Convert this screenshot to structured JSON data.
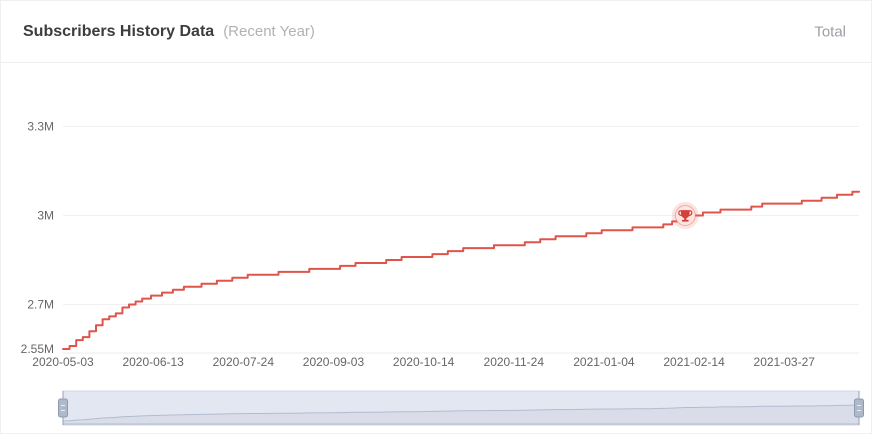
{
  "header": {
    "title": "Subscribers History Data",
    "subtitle": "(Recent Year)",
    "right_label": "Total"
  },
  "colors": {
    "line": "#e0544b",
    "grid": "#f1f1f1",
    "axis_line": "#eeeeee",
    "axis_label": "#666666",
    "milestone_red": "#d2423a",
    "milestone_bg": "#fbe4e2",
    "milestone_ring": "rgba(224,84,74,0.40)",
    "milestone_glow": "rgba(224,84,74,0.16)",
    "datazoom_fill": "#e3e7f1",
    "datazoom_border": "#d2d8e4",
    "datazoom_handle_fill": "#aeb9c9",
    "datazoom_handle_stroke": "#8d9bb0",
    "datazoom_handle_line": "#96a3b7",
    "datazoom_grip_line": "#e9edf4",
    "datazoom_curve": "#b3bccf",
    "datazoom_curve_fill": "rgba(150,163,183,0.14)"
  },
  "chart_data": {
    "type": "line",
    "step": "after",
    "title": "Subscribers History Data (Recent Year)",
    "series_name": "Total",
    "xlabel": "",
    "ylabel": "",
    "x_start": "2020-05-03",
    "x_end": "2021-04-30",
    "x_ticks": [
      "2020-05-03",
      "2020-06-13",
      "2020-07-24",
      "2020-09-03",
      "2020-10-14",
      "2020-11-24",
      "2021-01-04",
      "2021-02-14",
      "2021-03-27"
    ],
    "y_ticks": [
      {
        "label": "2.55M",
        "value": 2.55
      },
      {
        "label": "2.7M",
        "value": 2.7
      },
      {
        "label": "3M",
        "value": 3.0
      },
      {
        "label": "3.3M",
        "value": 3.3
      }
    ],
    "y_min": 2.55,
    "y_max": 3.3,
    "unit": "M subscribers",
    "grid": true,
    "legend_position": "top-right",
    "milestone": {
      "date": "2021-02-10",
      "value": 3.0,
      "icon": "trophy-icon"
    },
    "points": [
      [
        "2020-05-03",
        2.55
      ],
      [
        "2020-05-06",
        2.56
      ],
      [
        "2020-05-09",
        2.58
      ],
      [
        "2020-05-12",
        2.59
      ],
      [
        "2020-05-15",
        2.61
      ],
      [
        "2020-05-18",
        2.63
      ],
      [
        "2020-05-21",
        2.65
      ],
      [
        "2020-05-24",
        2.66
      ],
      [
        "2020-05-27",
        2.67
      ],
      [
        "2020-05-30",
        2.69
      ],
      [
        "2020-06-02",
        2.7
      ],
      [
        "2020-06-05",
        2.71
      ],
      [
        "2020-06-08",
        2.72
      ],
      [
        "2020-06-12",
        2.73
      ],
      [
        "2020-06-17",
        2.74
      ],
      [
        "2020-06-22",
        2.75
      ],
      [
        "2020-06-27",
        2.76
      ],
      [
        "2020-07-05",
        2.77
      ],
      [
        "2020-07-12",
        2.78
      ],
      [
        "2020-07-19",
        2.79
      ],
      [
        "2020-07-26",
        2.8
      ],
      [
        "2020-08-02",
        2.8
      ],
      [
        "2020-08-09",
        2.81
      ],
      [
        "2020-08-16",
        2.81
      ],
      [
        "2020-08-23",
        2.82
      ],
      [
        "2020-08-30",
        2.82
      ],
      [
        "2020-09-06",
        2.83
      ],
      [
        "2020-09-13",
        2.84
      ],
      [
        "2020-09-20",
        2.84
      ],
      [
        "2020-09-27",
        2.85
      ],
      [
        "2020-10-04",
        2.86
      ],
      [
        "2020-10-11",
        2.86
      ],
      [
        "2020-10-18",
        2.87
      ],
      [
        "2020-10-25",
        2.88
      ],
      [
        "2020-11-01",
        2.89
      ],
      [
        "2020-11-08",
        2.89
      ],
      [
        "2020-11-15",
        2.9
      ],
      [
        "2020-11-22",
        2.9
      ],
      [
        "2020-11-29",
        2.91
      ],
      [
        "2020-12-06",
        2.92
      ],
      [
        "2020-12-13",
        2.93
      ],
      [
        "2020-12-20",
        2.93
      ],
      [
        "2020-12-27",
        2.94
      ],
      [
        "2021-01-03",
        2.95
      ],
      [
        "2021-01-10",
        2.95
      ],
      [
        "2021-01-17",
        2.96
      ],
      [
        "2021-01-24",
        2.96
      ],
      [
        "2021-01-31",
        2.97
      ],
      [
        "2021-02-04",
        2.98
      ],
      [
        "2021-02-07",
        2.99
      ],
      [
        "2021-02-10",
        3.0
      ],
      [
        "2021-02-15",
        3.0
      ],
      [
        "2021-02-18",
        3.01
      ],
      [
        "2021-02-23",
        3.01
      ],
      [
        "2021-02-26",
        3.02
      ],
      [
        "2021-03-05",
        3.02
      ],
      [
        "2021-03-12",
        3.03
      ],
      [
        "2021-03-17",
        3.04
      ],
      [
        "2021-03-25",
        3.04
      ],
      [
        "2021-04-04",
        3.05
      ],
      [
        "2021-04-09",
        3.05
      ],
      [
        "2021-04-13",
        3.06
      ],
      [
        "2021-04-17",
        3.06
      ],
      [
        "2021-04-20",
        3.07
      ],
      [
        "2021-04-24",
        3.07
      ],
      [
        "2021-04-27",
        3.08
      ],
      [
        "2021-04-30",
        3.08
      ]
    ]
  },
  "datazoom": {
    "selected_start": "2020-05-03",
    "selected_end": "2021-04-30",
    "full_range_selected": true
  }
}
